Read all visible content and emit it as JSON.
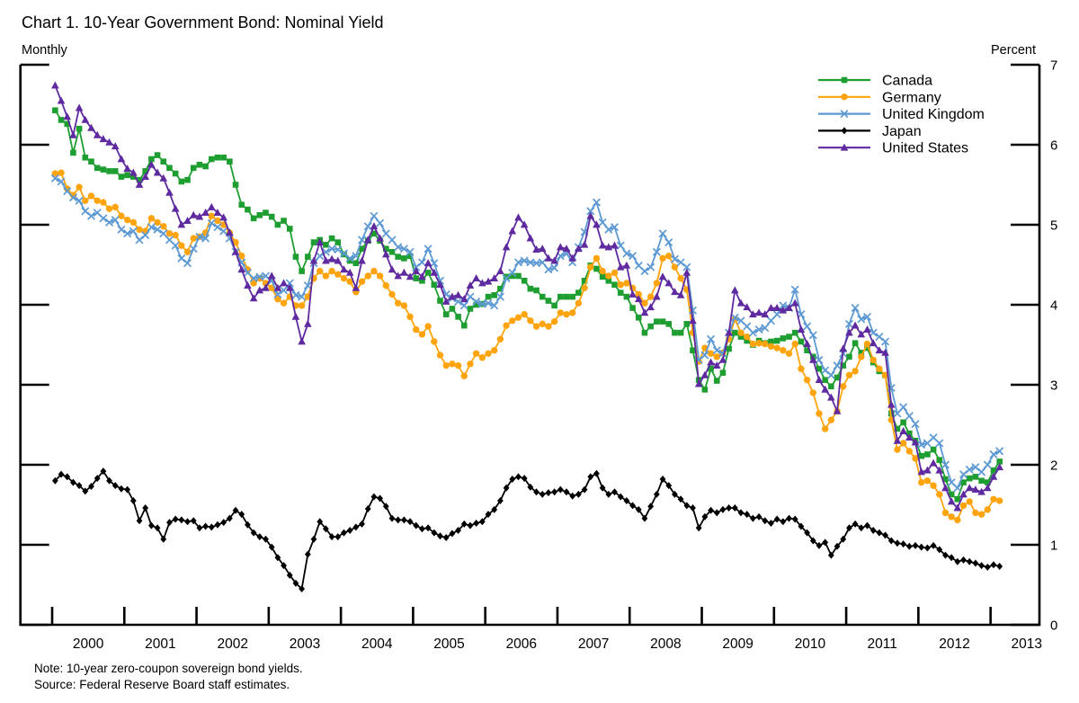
{
  "header": {
    "title": "Chart 1. 10-Year Government Bond: Nominal Yield",
    "subtitle_left": "Monthly",
    "axis_label_right": "Percent"
  },
  "footer": {
    "note": "Note:  10-year zero-coupon sovereign bond yields.",
    "source": "Source:  Federal Reserve Board staff estimates."
  },
  "chart_data": {
    "type": "line",
    "title": "Chart 1. 10-Year Government Bond: Nominal Yield",
    "frequency": "Monthly",
    "ylabel": "Percent",
    "ylim": [
      0,
      7
    ],
    "ytick_step": 1,
    "x_start": "2000-01",
    "x_end": "2013-02",
    "xtick_years": [
      2000,
      2001,
      2002,
      2003,
      2004,
      2005,
      2006,
      2007,
      2008,
      2009,
      2010,
      2011,
      2012,
      2013
    ],
    "grid": false,
    "legend_position": "top-right",
    "series": [
      {
        "name": "Canada",
        "color": "#1e9e30",
        "marker": "square",
        "values": [
          6.43,
          6.31,
          6.26,
          5.9,
          6.2,
          5.84,
          5.79,
          5.71,
          5.69,
          5.67,
          5.67,
          5.6,
          5.62,
          5.6,
          5.56,
          5.67,
          5.82,
          5.87,
          5.79,
          5.71,
          5.64,
          5.54,
          5.56,
          5.71,
          5.75,
          5.73,
          5.82,
          5.84,
          5.84,
          5.79,
          5.5,
          5.25,
          5.19,
          5.08,
          5.12,
          5.15,
          5.1,
          5.0,
          5.05,
          4.95,
          4.6,
          4.42,
          4.6,
          4.78,
          4.81,
          4.75,
          4.83,
          4.78,
          4.63,
          4.55,
          4.52,
          4.7,
          4.8,
          4.89,
          4.8,
          4.7,
          4.66,
          4.6,
          4.58,
          4.61,
          4.33,
          4.3,
          4.4,
          4.25,
          4.05,
          3.88,
          3.95,
          3.85,
          3.74,
          3.95,
          4.0,
          4.01,
          4.1,
          4.12,
          4.2,
          4.35,
          4.36,
          4.36,
          4.3,
          4.2,
          4.18,
          4.1,
          4.05,
          3.99,
          4.1,
          4.1,
          4.1,
          4.15,
          4.3,
          4.49,
          4.45,
          4.35,
          4.3,
          4.25,
          4.15,
          4.1,
          3.96,
          3.84,
          3.65,
          3.73,
          3.79,
          3.79,
          3.76,
          3.65,
          3.65,
          3.76,
          3.43,
          3.06,
          2.94,
          3.2,
          3.05,
          3.15,
          3.45,
          3.65,
          3.6,
          3.55,
          3.5,
          3.55,
          3.52,
          3.54,
          3.55,
          3.58,
          3.6,
          3.65,
          3.54,
          3.43,
          3.35,
          3.2,
          3.06,
          2.98,
          3.09,
          3.24,
          3.35,
          3.52,
          3.4,
          3.46,
          3.28,
          3.17,
          3.12,
          2.64,
          2.45,
          2.53,
          2.39,
          2.3,
          2.11,
          2.13,
          2.19,
          2.06,
          1.82,
          1.63,
          1.57,
          1.78,
          1.83,
          1.85,
          1.8,
          1.78,
          1.93,
          2.04
        ]
      },
      {
        "name": "Germany",
        "color": "#ffa40d",
        "marker": "circle",
        "values": [
          5.64,
          5.65,
          5.45,
          5.37,
          5.47,
          5.3,
          5.36,
          5.3,
          5.28,
          5.2,
          5.22,
          5.11,
          5.06,
          5.03,
          4.94,
          4.92,
          5.08,
          5.03,
          4.98,
          4.89,
          4.87,
          4.74,
          4.66,
          4.83,
          4.85,
          4.9,
          5.11,
          5.05,
          5.0,
          4.9,
          4.78,
          4.61,
          4.44,
          4.27,
          4.33,
          4.27,
          4.21,
          4.07,
          4.02,
          4.1,
          3.99,
          3.99,
          4.1,
          4.33,
          4.42,
          4.36,
          4.42,
          4.38,
          4.33,
          4.29,
          4.16,
          4.29,
          4.36,
          4.42,
          4.36,
          4.24,
          4.13,
          4.02,
          3.99,
          3.85,
          3.69,
          3.63,
          3.73,
          3.54,
          3.37,
          3.24,
          3.26,
          3.24,
          3.11,
          3.26,
          3.39,
          3.34,
          3.39,
          3.43,
          3.57,
          3.74,
          3.8,
          3.84,
          3.88,
          3.8,
          3.73,
          3.76,
          3.73,
          3.79,
          3.9,
          3.88,
          3.9,
          4.02,
          4.21,
          4.47,
          4.58,
          4.42,
          4.36,
          4.4,
          4.25,
          4.27,
          4.21,
          4.13,
          4.02,
          4.1,
          4.27,
          4.58,
          4.61,
          4.47,
          4.33,
          4.19,
          3.65,
          3.29,
          3.46,
          3.39,
          3.35,
          3.4,
          3.57,
          3.82,
          3.65,
          3.6,
          3.51,
          3.52,
          3.51,
          3.48,
          3.46,
          3.43,
          3.39,
          3.51,
          3.2,
          3.06,
          2.9,
          2.64,
          2.45,
          2.56,
          2.67,
          2.98,
          3.12,
          3.17,
          3.35,
          3.51,
          3.31,
          3.2,
          3.12,
          2.56,
          2.19,
          2.27,
          2.17,
          2.08,
          1.78,
          1.8,
          1.74,
          1.63,
          1.4,
          1.35,
          1.31,
          1.49,
          1.54,
          1.4,
          1.38,
          1.44,
          1.57,
          1.55
        ]
      },
      {
        "name": "United Kingdom",
        "color": "#5d99d2",
        "marker": "x",
        "values": [
          5.58,
          5.54,
          5.42,
          5.34,
          5.3,
          5.17,
          5.11,
          5.15,
          5.08,
          5.03,
          5.06,
          4.94,
          4.89,
          4.92,
          4.81,
          4.87,
          4.97,
          4.94,
          4.89,
          4.81,
          4.74,
          4.58,
          4.52,
          4.7,
          4.85,
          4.83,
          5.02,
          4.97,
          4.92,
          4.83,
          4.66,
          4.53,
          4.4,
          4.33,
          4.35,
          4.36,
          4.3,
          4.13,
          4.18,
          4.27,
          4.12,
          4.1,
          4.24,
          4.52,
          4.61,
          4.66,
          4.7,
          4.69,
          4.64,
          4.58,
          4.61,
          4.81,
          4.98,
          5.11,
          5.02,
          4.89,
          4.81,
          4.72,
          4.7,
          4.66,
          4.47,
          4.53,
          4.7,
          4.52,
          4.3,
          4.13,
          4.08,
          4.04,
          3.99,
          4.1,
          4.04,
          4.01,
          4.02,
          3.99,
          4.1,
          4.33,
          4.4,
          4.53,
          4.55,
          4.53,
          4.52,
          4.53,
          4.44,
          4.46,
          4.61,
          4.64,
          4.53,
          4.72,
          4.91,
          5.17,
          5.28,
          5.03,
          4.94,
          4.97,
          4.74,
          4.64,
          4.61,
          4.49,
          4.42,
          4.47,
          4.66,
          4.89,
          4.78,
          4.57,
          4.53,
          4.47,
          3.93,
          3.31,
          3.37,
          3.57,
          3.43,
          3.39,
          3.65,
          3.84,
          3.8,
          3.73,
          3.65,
          3.69,
          3.71,
          3.8,
          3.88,
          3.99,
          3.96,
          4.19,
          3.88,
          3.73,
          3.62,
          3.31,
          3.18,
          3.12,
          3.24,
          3.39,
          3.76,
          3.96,
          3.82,
          3.85,
          3.65,
          3.6,
          3.54,
          2.96,
          2.64,
          2.72,
          2.61,
          2.51,
          2.25,
          2.27,
          2.34,
          2.27,
          2.0,
          1.78,
          1.71,
          1.88,
          1.94,
          1.97,
          1.91,
          2.0,
          2.13,
          2.17
        ]
      },
      {
        "name": "Japan",
        "color": "#000000",
        "marker": "diamond",
        "values": [
          1.8,
          1.88,
          1.85,
          1.78,
          1.74,
          1.67,
          1.73,
          1.83,
          1.92,
          1.8,
          1.74,
          1.7,
          1.69,
          1.55,
          1.3,
          1.46,
          1.24,
          1.21,
          1.07,
          1.28,
          1.32,
          1.31,
          1.29,
          1.3,
          1.21,
          1.23,
          1.22,
          1.25,
          1.28,
          1.33,
          1.43,
          1.38,
          1.25,
          1.15,
          1.1,
          1.07,
          0.97,
          0.84,
          0.74,
          0.62,
          0.52,
          0.45,
          0.88,
          1.07,
          1.29,
          1.2,
          1.1,
          1.1,
          1.15,
          1.18,
          1.22,
          1.26,
          1.45,
          1.6,
          1.58,
          1.48,
          1.33,
          1.31,
          1.31,
          1.29,
          1.24,
          1.2,
          1.21,
          1.15,
          1.11,
          1.09,
          1.14,
          1.18,
          1.26,
          1.24,
          1.27,
          1.29,
          1.38,
          1.44,
          1.55,
          1.71,
          1.82,
          1.85,
          1.83,
          1.72,
          1.66,
          1.63,
          1.65,
          1.66,
          1.69,
          1.66,
          1.61,
          1.63,
          1.69,
          1.85,
          1.89,
          1.71,
          1.63,
          1.66,
          1.6,
          1.55,
          1.49,
          1.44,
          1.33,
          1.48,
          1.63,
          1.82,
          1.74,
          1.63,
          1.57,
          1.49,
          1.46,
          1.21,
          1.35,
          1.43,
          1.4,
          1.44,
          1.46,
          1.46,
          1.4,
          1.38,
          1.33,
          1.35,
          1.3,
          1.27,
          1.32,
          1.29,
          1.33,
          1.32,
          1.23,
          1.15,
          1.05,
          0.99,
          1.03,
          0.87,
          0.98,
          1.07,
          1.21,
          1.26,
          1.21,
          1.24,
          1.18,
          1.15,
          1.12,
          1.05,
          1.02,
          1.01,
          0.98,
          0.99,
          0.97,
          0.96,
          0.99,
          0.94,
          0.87,
          0.84,
          0.79,
          0.81,
          0.79,
          0.77,
          0.74,
          0.72,
          0.75,
          0.73
        ]
      },
      {
        "name": "United States",
        "color": "#5f2aa0",
        "marker": "triangle",
        "values": [
          6.74,
          6.55,
          6.35,
          6.12,
          6.46,
          6.31,
          6.21,
          6.12,
          6.07,
          6.03,
          5.98,
          5.82,
          5.7,
          5.65,
          5.5,
          5.6,
          5.75,
          5.65,
          5.58,
          5.4,
          5.2,
          5.0,
          5.05,
          5.12,
          5.1,
          5.15,
          5.22,
          5.15,
          5.09,
          4.9,
          4.66,
          4.44,
          4.24,
          4.08,
          4.18,
          4.21,
          4.36,
          4.21,
          4.27,
          4.21,
          3.85,
          3.54,
          3.76,
          4.55,
          4.78,
          4.55,
          4.57,
          4.55,
          4.44,
          4.4,
          4.21,
          4.55,
          4.81,
          4.98,
          4.83,
          4.63,
          4.44,
          4.36,
          4.4,
          4.35,
          4.42,
          4.35,
          4.52,
          4.4,
          4.25,
          4.04,
          4.1,
          4.12,
          4.07,
          4.24,
          4.33,
          4.27,
          4.29,
          4.33,
          4.42,
          4.72,
          4.92,
          5.09,
          5.0,
          4.83,
          4.69,
          4.7,
          4.58,
          4.55,
          4.72,
          4.7,
          4.58,
          4.7,
          4.75,
          5.11,
          5.0,
          4.74,
          4.72,
          4.74,
          4.47,
          4.49,
          4.13,
          4.07,
          3.9,
          3.97,
          4.1,
          4.35,
          4.27,
          4.16,
          4.12,
          4.4,
          3.8,
          3.01,
          3.12,
          3.28,
          3.24,
          3.31,
          3.65,
          4.18,
          4.02,
          3.97,
          3.88,
          3.9,
          3.88,
          3.96,
          3.96,
          3.93,
          3.96,
          4.02,
          3.69,
          3.51,
          3.31,
          3.06,
          2.94,
          2.84,
          2.67,
          3.45,
          3.65,
          3.74,
          3.63,
          3.69,
          3.52,
          3.43,
          3.4,
          2.75,
          2.3,
          2.42,
          2.34,
          2.28,
          1.91,
          1.93,
          2.02,
          1.93,
          1.71,
          1.54,
          1.46,
          1.63,
          1.71,
          1.69,
          1.66,
          1.71,
          1.85,
          1.97
        ]
      }
    ]
  }
}
